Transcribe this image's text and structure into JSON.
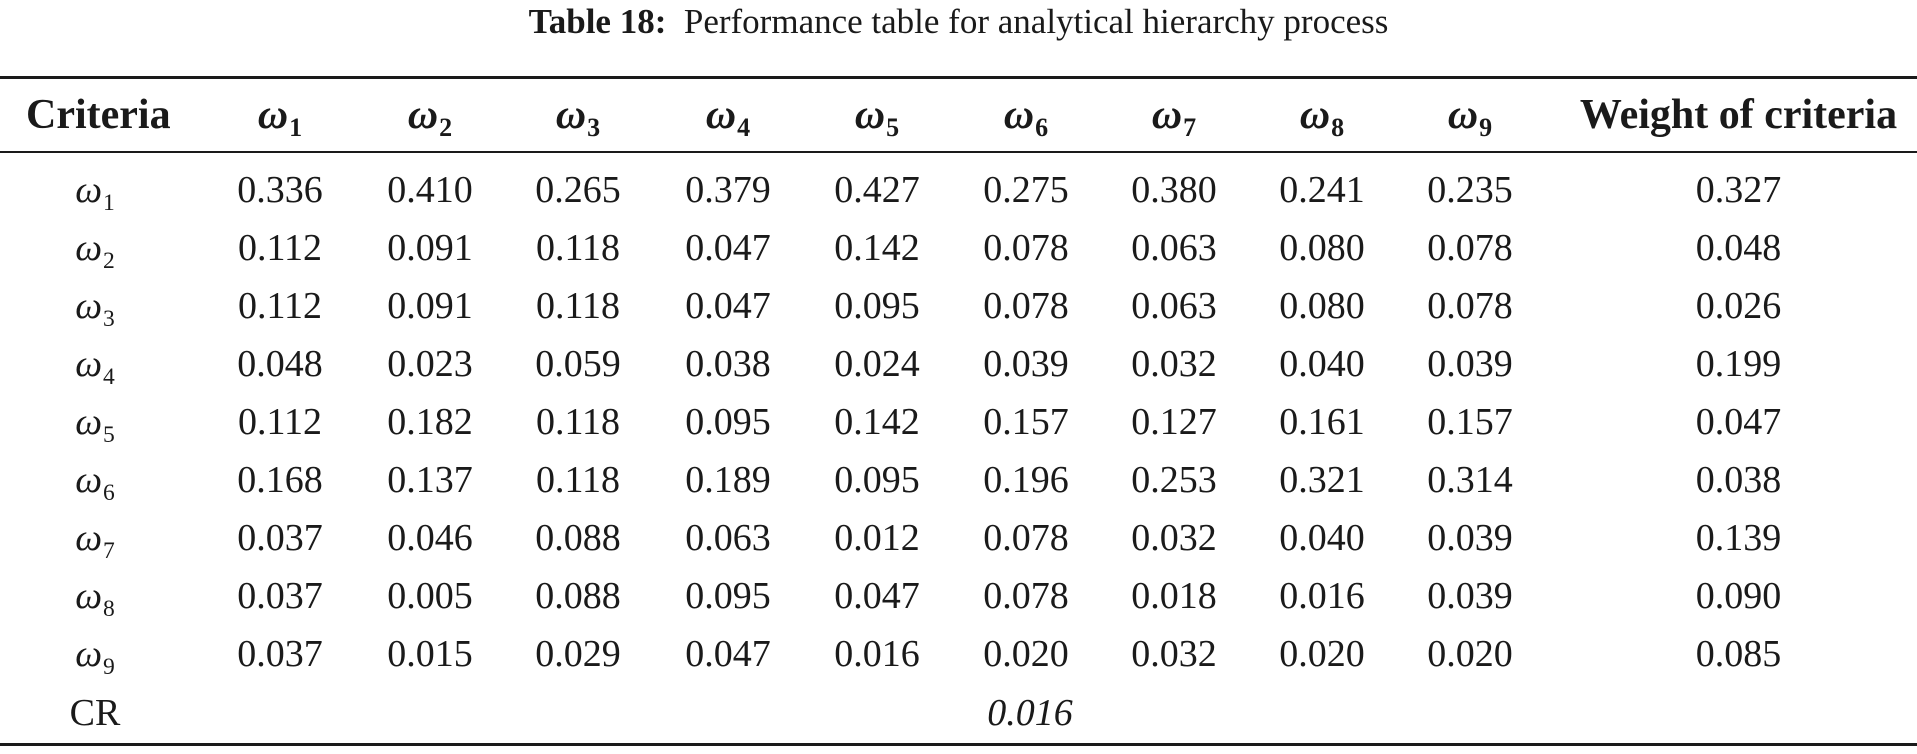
{
  "caption": {
    "label": "Table 18:",
    "text": "Performance table for analytical hierarchy process"
  },
  "table": {
    "header": {
      "criteria": "Criteria",
      "columns": [
        {
          "symbol": "ω",
          "sub": "1"
        },
        {
          "symbol": "ω",
          "sub": "2"
        },
        {
          "symbol": "ω",
          "sub": "3"
        },
        {
          "symbol": "ω",
          "sub": "4"
        },
        {
          "symbol": "ω",
          "sub": "5"
        },
        {
          "symbol": "ω",
          "sub": "6"
        },
        {
          "symbol": "ω",
          "sub": "7"
        },
        {
          "symbol": "ω",
          "sub": "8"
        },
        {
          "symbol": "ω",
          "sub": "9"
        }
      ],
      "weight": "Weight of criteria"
    },
    "rows": [
      {
        "symbol": "ω",
        "sub": "1",
        "values": [
          "0.336",
          "0.410",
          "0.265",
          "0.379",
          "0.427",
          "0.275",
          "0.380",
          "0.241",
          "0.235"
        ],
        "weight": "0.327"
      },
      {
        "symbol": "ω",
        "sub": "2",
        "values": [
          "0.112",
          "0.091",
          "0.118",
          "0.047",
          "0.142",
          "0.078",
          "0.063",
          "0.080",
          "0.078"
        ],
        "weight": "0.048"
      },
      {
        "symbol": "ω",
        "sub": "3",
        "values": [
          "0.112",
          "0.091",
          "0.118",
          "0.047",
          "0.095",
          "0.078",
          "0.063",
          "0.080",
          "0.078"
        ],
        "weight": "0.026"
      },
      {
        "symbol": "ω",
        "sub": "4",
        "values": [
          "0.048",
          "0.023",
          "0.059",
          "0.038",
          "0.024",
          "0.039",
          "0.032",
          "0.040",
          "0.039"
        ],
        "weight": "0.199"
      },
      {
        "symbol": "ω",
        "sub": "5",
        "values": [
          "0.112",
          "0.182",
          "0.118",
          "0.095",
          "0.142",
          "0.157",
          "0.127",
          "0.161",
          "0.157"
        ],
        "weight": "0.047"
      },
      {
        "symbol": "ω",
        "sub": "6",
        "values": [
          "0.168",
          "0.137",
          "0.118",
          "0.189",
          "0.095",
          "0.196",
          "0.253",
          "0.321",
          "0.314"
        ],
        "weight": "0.038"
      },
      {
        "symbol": "ω",
        "sub": "7",
        "values": [
          "0.037",
          "0.046",
          "0.088",
          "0.063",
          "0.012",
          "0.078",
          "0.032",
          "0.040",
          "0.039"
        ],
        "weight": "0.139"
      },
      {
        "symbol": "ω",
        "sub": "8",
        "values": [
          "0.037",
          "0.005",
          "0.088",
          "0.095",
          "0.047",
          "0.078",
          "0.018",
          "0.016",
          "0.039"
        ],
        "weight": "0.090"
      },
      {
        "symbol": "ω",
        "sub": "9",
        "values": [
          "0.037",
          "0.015",
          "0.029",
          "0.047",
          "0.016",
          "0.020",
          "0.032",
          "0.020",
          "0.020"
        ],
        "weight": "0.085"
      }
    ],
    "cr": {
      "label": "CR",
      "value": "0.016"
    }
  }
}
